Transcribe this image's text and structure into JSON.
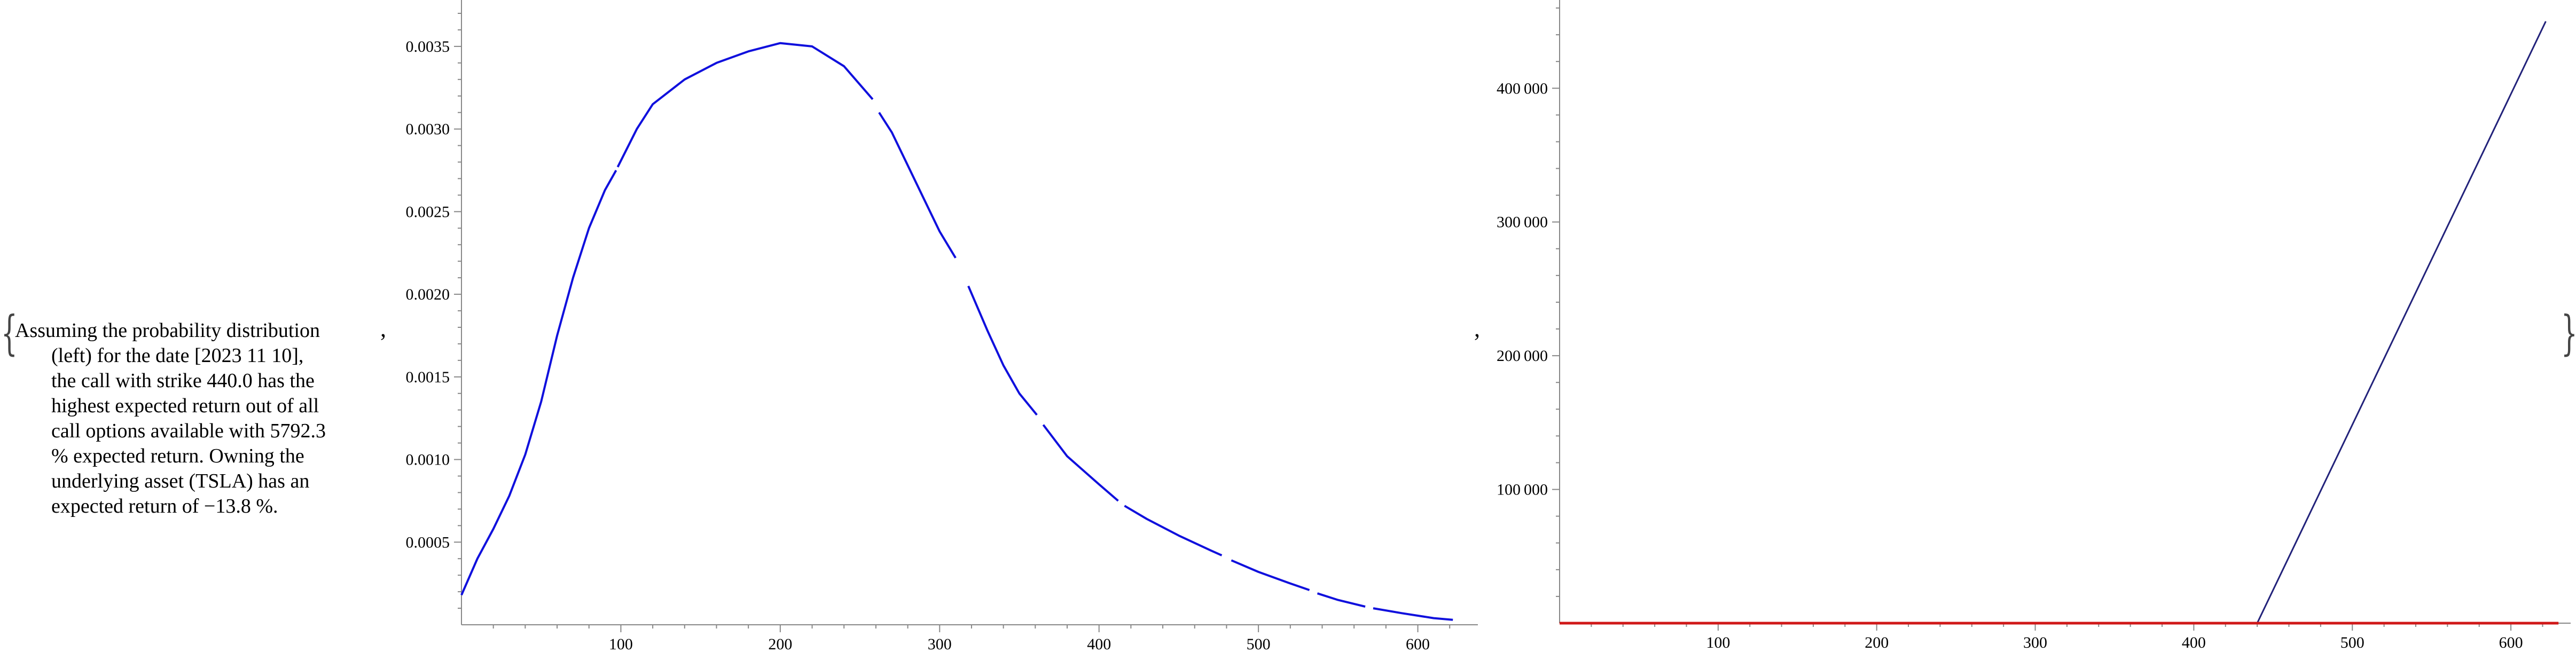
{
  "caption": {
    "lines": [
      "Assuming the probability distribution",
      "(left) for the date [2023 11 10],",
      "the call with strike 440.0 has the",
      "highest expected return out of all",
      "call options available with 5792.3",
      "% expected return. Owning the",
      "underlying asset (TSLA) has an",
      "expected return of −13.8 %."
    ]
  },
  "punctuation": {
    "open_brace": "{",
    "close_brace": "}",
    "comma_1": ",",
    "comma_2": ","
  },
  "chart_data": [
    {
      "type": "line",
      "series_color": "#1010dd",
      "xlim": [
        0,
        635
      ],
      "ylim": [
        0,
        0.0037
      ],
      "x_ticks": [
        100,
        200,
        300,
        400,
        500,
        600
      ],
      "x_tick_labels": [
        "100",
        "200",
        "300",
        "400",
        "500",
        "600"
      ],
      "y_ticks": [
        0.0005,
        0.001,
        0.0015,
        0.002,
        0.0025,
        0.003,
        0.0035
      ],
      "y_tick_labels": [
        "0.0005",
        "0.0010",
        "0.0015",
        "0.0020",
        "0.0025",
        "0.0030",
        "0.0035"
      ],
      "segments": [
        {
          "x": [
            0,
            10,
            20,
            30,
            40,
            50,
            60,
            70,
            80,
            90,
            97
          ],
          "y": [
            0.00018,
            0.0004,
            0.00058,
            0.00078,
            0.00103,
            0.00135,
            0.00175,
            0.0021,
            0.0024,
            0.00263,
            0.00275
          ]
        },
        {
          "x": [
            98,
            110,
            120,
            140,
            160,
            180,
            200,
            220,
            240,
            258
          ],
          "y": [
            0.00277,
            0.003,
            0.00315,
            0.0033,
            0.0034,
            0.00347,
            0.00352,
            0.0035,
            0.00338,
            0.00318
          ]
        },
        {
          "x": [
            262,
            270,
            280,
            290,
            300,
            310
          ],
          "y": [
            0.0031,
            0.00298,
            0.00278,
            0.00258,
            0.00238,
            0.00222
          ]
        },
        {
          "x": [
            318,
            330,
            340,
            350,
            361
          ],
          "y": [
            0.00205,
            0.00178,
            0.00157,
            0.0014,
            0.00127
          ]
        },
        {
          "x": [
            365,
            380,
            400,
            412
          ],
          "y": [
            0.00121,
            0.00102,
            0.00085,
            0.00075
          ]
        },
        {
          "x": [
            416,
            430,
            450,
            470,
            477
          ],
          "y": [
            0.00072,
            0.00064,
            0.00054,
            0.00045,
            0.00042
          ]
        },
        {
          "x": [
            483,
            500,
            520,
            532
          ],
          "y": [
            0.00039,
            0.00032,
            0.00025,
            0.00021
          ]
        },
        {
          "x": [
            537,
            550,
            567
          ],
          "y": [
            0.00019,
            0.00015,
            0.00011
          ]
        },
        {
          "x": [
            572,
            590,
            610,
            622
          ],
          "y": [
            0.0001,
            7e-05,
            4e-05,
            3e-05
          ]
        }
      ]
    },
    {
      "type": "line",
      "xlim": [
        0,
        635
      ],
      "ylim": [
        0,
        460000
      ],
      "x_ticks": [
        100,
        200,
        300,
        400,
        500,
        600
      ],
      "x_tick_labels": [
        "100",
        "200",
        "300",
        "400",
        "500",
        "600"
      ],
      "y_ticks": [
        100000,
        200000,
        300000,
        400000
      ],
      "y_tick_labels": [
        "100 000",
        "200 000",
        "300 000",
        "400 000"
      ],
      "series": [
        {
          "color": "#22227a",
          "x": [
            0,
            440,
            622
          ],
          "y": [
            0,
            0,
            450000
          ]
        },
        {
          "color": "#d01818",
          "x": [
            0,
            630
          ],
          "y": [
            0,
            0
          ]
        }
      ]
    }
  ]
}
